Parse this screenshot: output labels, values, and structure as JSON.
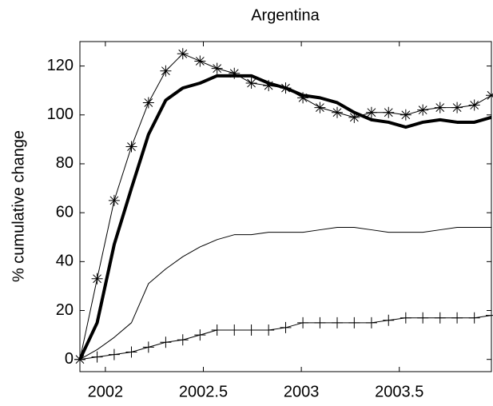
{
  "chart_data": {
    "type": "line",
    "title": "Argentina",
    "y_label": "% cumulative change",
    "x": [
      2001.87,
      2001.958,
      2002.045,
      2002.133,
      2002.22,
      2002.308,
      2002.395,
      2002.483,
      2002.57,
      2002.658,
      2002.745,
      2002.833,
      2002.92,
      2003.008,
      2003.095,
      2003.183,
      2003.27,
      2003.358,
      2003.445,
      2003.533,
      2003.62,
      2003.708,
      2003.795,
      2003.883,
      2003.97
    ],
    "series": [
      {
        "color": "#000000",
        "line_width": 1,
        "marker": "star",
        "values": [
          0,
          33,
          65,
          87,
          105,
          118,
          125,
          122,
          119,
          117,
          113,
          112,
          111,
          107,
          103,
          101,
          99,
          101,
          101,
          100,
          102,
          103,
          103,
          104,
          108
        ]
      },
      {
        "color": "#000000",
        "line_width": 4,
        "marker": "none",
        "values": [
          0,
          15,
          47,
          70,
          92,
          106,
          111,
          113,
          116,
          116,
          116,
          113,
          111,
          108,
          107,
          105,
          101,
          98,
          97,
          95,
          97,
          98,
          97,
          97,
          99
        ]
      },
      {
        "color": "#000000",
        "line_width": 1,
        "marker": "none",
        "values": [
          0,
          4,
          9,
          15,
          31,
          37,
          42,
          46,
          49,
          51,
          51,
          52,
          52,
          52,
          53,
          54,
          54,
          53,
          52,
          52,
          52,
          53,
          54,
          54,
          54
        ]
      },
      {
        "color": "#000000",
        "line_width": 1,
        "marker": "plus",
        "values": [
          0,
          1,
          2,
          3,
          5,
          7,
          8,
          10,
          12,
          12,
          12,
          12,
          13,
          15,
          15,
          15,
          15,
          15,
          16,
          17,
          17,
          17,
          17,
          17,
          18
        ]
      }
    ],
    "xlim": [
      2001.87,
      2003.97
    ],
    "xticks": [
      2002,
      2002.5,
      2003,
      2003.5
    ],
    "ylim": [
      -5,
      130
    ],
    "yticks": [
      0,
      20,
      40,
      60,
      80,
      100,
      120
    ],
    "grid": false
  }
}
